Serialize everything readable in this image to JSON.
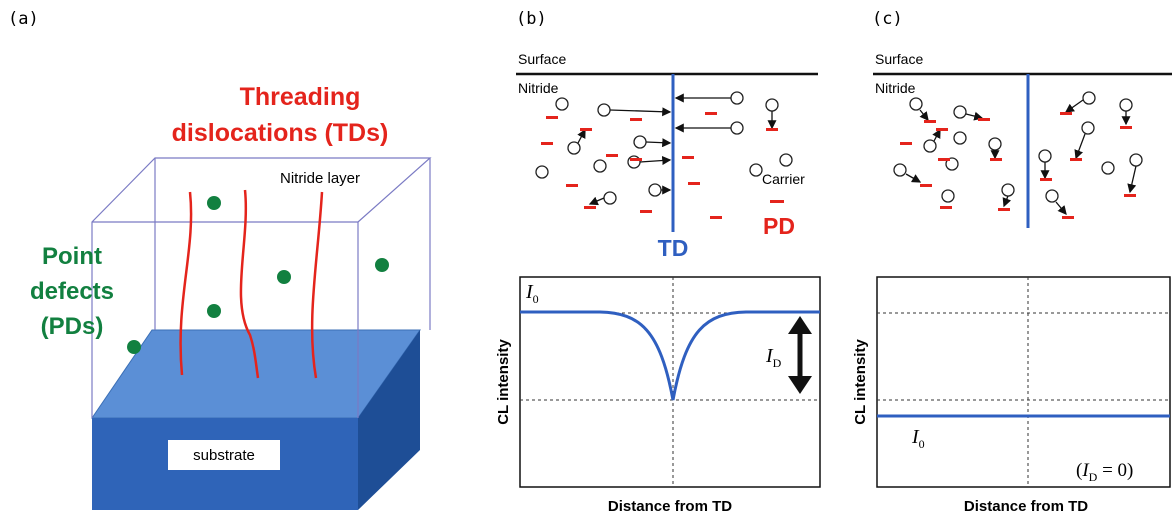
{
  "panels": [
    {
      "label": "(a)",
      "title_lines": [
        "Threading",
        "dislocations (TDs)"
      ],
      "layer_label": "Nitride layer",
      "pd_lines": [
        "Point",
        "defects",
        "(PDs)"
      ],
      "substrate": "substrate"
    },
    {
      "label": "(b)",
      "surface": "Surface",
      "nitride": "Nitride",
      "carrier": "Carrier",
      "td": "TD",
      "pd": "PD",
      "y_axis": "CL intensity",
      "x_axis": "Distance from TD",
      "i0": {
        "symbol": "I",
        "subscript": "0"
      },
      "id": {
        "symbol": "I",
        "subscript": "D"
      }
    },
    {
      "label": "(c)",
      "surface": "Surface",
      "nitride": "Nitride",
      "y_axis": "CL intensity",
      "x_axis": "Distance from TD",
      "i0": {
        "symbol": "I",
        "subscript": "0"
      },
      "note": {
        "open": "(",
        "symbol": "I",
        "subscript": "D",
        "rest": " = 0)"
      }
    }
  ]
}
